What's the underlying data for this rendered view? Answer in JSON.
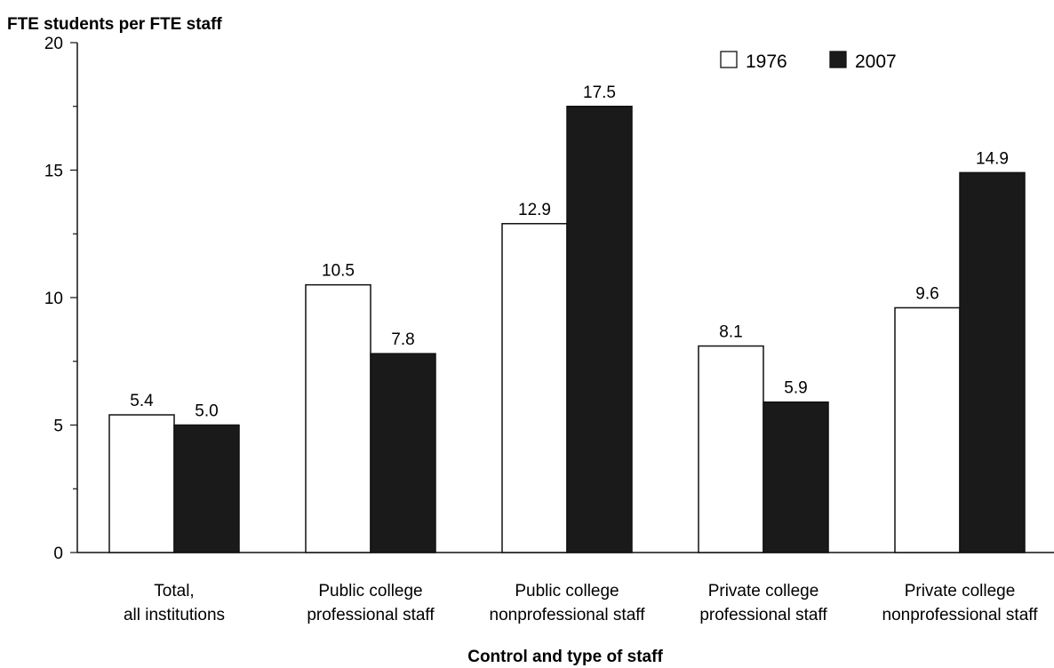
{
  "chart_data": {
    "type": "bar",
    "ylabel": "FTE students per FTE staff",
    "xlabel": "Control and type of staff",
    "ylim": [
      0,
      20
    ],
    "yticks": [
      0,
      5,
      10,
      15,
      20
    ],
    "categories": [
      [
        "Total,",
        "all institutions"
      ],
      [
        "Public college",
        "professional staff"
      ],
      [
        "Public college",
        "nonprofessional staff"
      ],
      [
        "Private college",
        "professional staff"
      ],
      [
        "Private college",
        "nonprofessional staff"
      ]
    ],
    "series": [
      {
        "name": "1976",
        "values": [
          5.4,
          10.5,
          12.9,
          8.1,
          9.6
        ],
        "color": "#ffffff"
      },
      {
        "name": "2007",
        "values": [
          5.0,
          7.8,
          17.5,
          5.9,
          14.9
        ],
        "color": "#1a1a1a"
      }
    ],
    "legend": "top-right",
    "grid": false
  }
}
